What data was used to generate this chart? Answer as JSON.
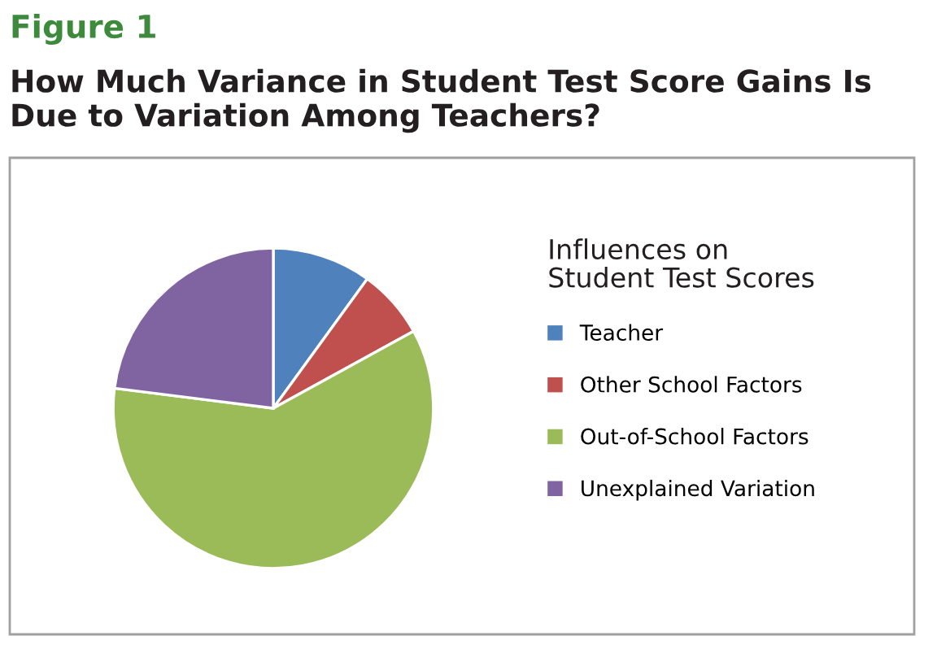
{
  "chart_data": {
    "type": "pie",
    "title": "Figure 1",
    "subtitle": "How Much Variance in Student Test Score Gains Is Due to Variation Among Teachers?",
    "legend_title": "Influences on\nStudent Test Scores",
    "legend": "right",
    "categories": [
      "Teacher",
      "Other School Factors",
      "Out-of-School Factors",
      "Unexplained Variation"
    ],
    "values": [
      10,
      7,
      60,
      23
    ],
    "colors": [
      "#4f81bd",
      "#c0504d",
      "#9bbb59",
      "#8064a2"
    ]
  }
}
